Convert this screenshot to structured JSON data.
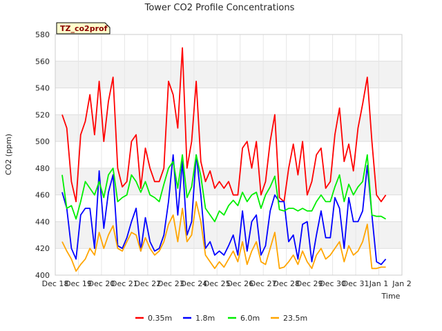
{
  "chart_data": {
    "type": "line",
    "title": "Tower CO2 Profile Concentrations",
    "badge": "TZ_co2prof",
    "xlabel": "Time",
    "ylabel": "CO2 (ppm)",
    "ylim": [
      400,
      580
    ],
    "yticks": [
      400,
      420,
      440,
      460,
      480,
      500,
      520,
      540,
      560,
      580
    ],
    "xlim": [
      0,
      15
    ],
    "xticks": [
      {
        "pos": 0,
        "label": "Dec 18"
      },
      {
        "pos": 1,
        "label": "Dec 19"
      },
      {
        "pos": 2,
        "label": "Dec 20"
      },
      {
        "pos": 3,
        "label": "Dec 21"
      },
      {
        "pos": 4,
        "label": "Dec 22"
      },
      {
        "pos": 5,
        "label": "Dec 23"
      },
      {
        "pos": 6,
        "label": "Dec 24"
      },
      {
        "pos": 7,
        "label": "Dec 25"
      },
      {
        "pos": 8,
        "label": "Dec 26"
      },
      {
        "pos": 9,
        "label": "Dec 27"
      },
      {
        "pos": 10,
        "label": "Dec 28"
      },
      {
        "pos": 11,
        "label": "Dec 29"
      },
      {
        "pos": 12,
        "label": "Dec 30"
      },
      {
        "pos": 13,
        "label": "Dec 31"
      },
      {
        "pos": 14,
        "label": "Jan 1"
      },
      {
        "pos": 15,
        "label": "Jan 2"
      }
    ],
    "grid": true,
    "legend_position": "bottom",
    "x": [
      0.3,
      0.5,
      0.7,
      0.9,
      1.1,
      1.3,
      1.5,
      1.7,
      1.9,
      2.1,
      2.3,
      2.5,
      2.7,
      2.9,
      3.1,
      3.3,
      3.5,
      3.7,
      3.9,
      4.1,
      4.3,
      4.5,
      4.7,
      4.9,
      5.1,
      5.3,
      5.5,
      5.7,
      5.9,
      6.1,
      6.3,
      6.5,
      6.7,
      6.9,
      7.1,
      7.3,
      7.5,
      7.7,
      7.9,
      8.1,
      8.3,
      8.5,
      8.7,
      8.9,
      9.1,
      9.3,
      9.5,
      9.7,
      9.9,
      10.1,
      10.3,
      10.5,
      10.7,
      10.9,
      11.1,
      11.3,
      11.5,
      11.7,
      11.9,
      12.1,
      12.3,
      12.5,
      12.7,
      12.9,
      13.1,
      13.3,
      13.5,
      13.7,
      13.9,
      14.1,
      14.3
    ],
    "series": [
      {
        "name": "0.35m",
        "color": "#ff0000",
        "values": [
          520,
          510,
          470,
          455,
          505,
          515,
          535,
          505,
          545,
          500,
          530,
          548,
          480,
          466,
          470,
          500,
          505,
          465,
          495,
          480,
          470,
          470,
          480,
          545,
          535,
          510,
          570,
          480,
          500,
          545,
          485,
          470,
          478,
          465,
          470,
          465,
          470,
          460,
          460,
          495,
          500,
          480,
          500,
          460,
          470,
          500,
          520,
          458,
          455,
          480,
          498,
          475,
          500,
          460,
          470,
          490,
          495,
          465,
          470,
          505,
          525,
          485,
          498,
          478,
          510,
          528,
          548,
          500,
          460,
          455,
          460
        ]
      },
      {
        "name": "1.8m",
        "color": "#0000ff",
        "values": [
          462,
          450,
          420,
          412,
          445,
          450,
          450,
          420,
          478,
          435,
          462,
          475,
          422,
          420,
          428,
          440,
          450,
          418,
          443,
          425,
          418,
          420,
          430,
          455,
          490,
          445,
          485,
          430,
          440,
          490,
          460,
          420,
          425,
          415,
          418,
          415,
          422,
          430,
          415,
          448,
          418,
          440,
          445,
          415,
          422,
          448,
          460,
          455,
          455,
          425,
          430,
          412,
          438,
          440,
          410,
          430,
          448,
          428,
          428,
          458,
          450,
          420,
          458,
          440,
          440,
          448,
          482,
          445,
          410,
          408,
          412
        ]
      },
      {
        "name": "6.0m",
        "color": "#00ee00",
        "values": [
          475,
          450,
          452,
          442,
          455,
          470,
          465,
          460,
          470,
          458,
          475,
          480,
          455,
          458,
          460,
          475,
          470,
          462,
          470,
          460,
          458,
          455,
          468,
          480,
          485,
          465,
          490,
          458,
          466,
          490,
          474,
          450,
          445,
          440,
          448,
          445,
          452,
          456,
          452,
          462,
          455,
          460,
          462,
          450,
          460,
          466,
          474,
          449,
          448,
          450,
          450,
          448,
          450,
          448,
          448,
          455,
          460,
          455,
          455,
          466,
          475,
          455,
          468,
          460,
          466,
          470,
          490,
          445,
          444,
          444,
          442
        ]
      },
      {
        "name": "23.5m",
        "color": "#ffa500",
        "values": [
          425,
          418,
          412,
          403,
          408,
          412,
          420,
          415,
          432,
          420,
          430,
          437,
          420,
          418,
          425,
          432,
          430,
          418,
          428,
          420,
          415,
          418,
          425,
          438,
          445,
          425,
          450,
          425,
          430,
          455,
          440,
          415,
          410,
          405,
          410,
          406,
          412,
          418,
          410,
          425,
          408,
          418,
          425,
          410,
          408,
          420,
          432,
          405,
          406,
          410,
          415,
          408,
          418,
          410,
          405,
          415,
          420,
          412,
          415,
          420,
          425,
          410,
          422,
          415,
          418,
          425,
          438,
          405,
          405,
          406,
          406
        ]
      }
    ]
  }
}
